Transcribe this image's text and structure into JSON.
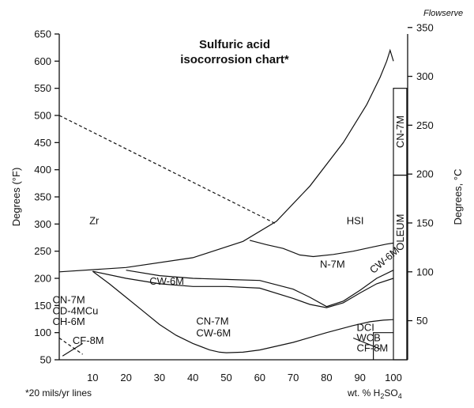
{
  "chart_data": {
    "type": "line",
    "credit": "Flowserve",
    "title_lines": [
      "Sulfuric acid",
      "isocorrosion chart*"
    ],
    "footnote": "*20 mils/yr lines",
    "xlabel_prefix": "wt. % H",
    "xlabel_sub1": "2",
    "xlabel_mid": "SO",
    "xlabel_sub2": "4",
    "ylabel_left": "Degrees (°F)",
    "ylabel_right": "Degrees, °C",
    "xlim": [
      0,
      100
    ],
    "ylim_f": [
      50,
      650
    ],
    "ylim_c": [
      10,
      350
    ],
    "x_ticks": [
      10,
      20,
      30,
      40,
      50,
      60,
      70,
      80,
      90,
      100
    ],
    "y_ticks_f": [
      50,
      100,
      150,
      200,
      250,
      300,
      350,
      400,
      450,
      500,
      550,
      600,
      650
    ],
    "y_ticks_c": [
      50,
      100,
      150,
      200,
      250,
      300,
      350
    ],
    "curves": [
      {
        "id": "boiling",
        "style": "solid",
        "points": [
          [
            0,
            212
          ],
          [
            20,
            220
          ],
          [
            40,
            238
          ],
          [
            55,
            268
          ],
          [
            65,
            305
          ],
          [
            75,
            370
          ],
          [
            85,
            450
          ],
          [
            92,
            520
          ],
          [
            96,
            570
          ],
          [
            98,
            600
          ],
          [
            99,
            620
          ],
          [
            100,
            600
          ]
        ]
      },
      {
        "id": "n7m-upper",
        "style": "solid",
        "points": [
          [
            57,
            270
          ],
          [
            62,
            262
          ],
          [
            67,
            255
          ],
          [
            72,
            243
          ],
          [
            76,
            240
          ],
          [
            82,
            244
          ],
          [
            88,
            250
          ],
          [
            94,
            258
          ],
          [
            98,
            263
          ],
          [
            100,
            265
          ]
        ]
      },
      {
        "id": "n7m-lower",
        "style": "solid",
        "points": [
          [
            20,
            215
          ],
          [
            30,
            205
          ],
          [
            40,
            200
          ],
          [
            50,
            198
          ],
          [
            60,
            196
          ],
          [
            70,
            180
          ],
          [
            75,
            165
          ],
          [
            80,
            148
          ],
          [
            85,
            158
          ],
          [
            90,
            178
          ],
          [
            95,
            200
          ],
          [
            100,
            215
          ]
        ]
      },
      {
        "id": "cw6m-lower",
        "style": "solid",
        "points": [
          [
            10,
            213
          ],
          [
            20,
            200
          ],
          [
            30,
            190
          ],
          [
            40,
            185
          ],
          [
            50,
            185
          ],
          [
            60,
            182
          ],
          [
            70,
            163
          ],
          [
            75,
            152
          ],
          [
            80,
            146
          ],
          [
            85,
            155
          ],
          [
            90,
            173
          ],
          [
            95,
            190
          ],
          [
            100,
            200
          ]
        ]
      },
      {
        "id": "cn7m-bottom",
        "style": "solid",
        "points": [
          [
            10,
            213
          ],
          [
            15,
            190
          ],
          [
            20,
            165
          ],
          [
            25,
            140
          ],
          [
            30,
            115
          ],
          [
            35,
            95
          ],
          [
            40,
            80
          ],
          [
            45,
            68
          ],
          [
            48,
            64
          ],
          [
            50,
            63
          ],
          [
            55,
            64
          ],
          [
            60,
            68
          ],
          [
            70,
            82
          ],
          [
            80,
            100
          ],
          [
            88,
            113
          ],
          [
            93,
            120
          ],
          [
            97,
            123
          ],
          [
            100,
            124
          ]
        ]
      },
      {
        "id": "zr-hsi-boundary",
        "style": "dashed",
        "points": [
          [
            0,
            500
          ],
          [
            65,
            300
          ]
        ]
      },
      {
        "id": "cf8m-dashed",
        "style": "dashed",
        "points": [
          [
            0,
            90
          ],
          [
            7,
            60
          ]
        ]
      },
      {
        "id": "cf8m-solid",
        "style": "solid",
        "points": [
          [
            1,
            57
          ],
          [
            7,
            80
          ]
        ]
      },
      {
        "id": "dci-box",
        "style": "solid",
        "points": [
          [
            94,
            50
          ],
          [
            94,
            100
          ],
          [
            100,
            100
          ]
        ]
      },
      {
        "id": "dci-leader",
        "style": "solid",
        "points": [
          [
            88,
            90
          ],
          [
            96,
            70
          ]
        ]
      }
    ],
    "bars": [
      {
        "label": "CN-7M",
        "x_range": [
          100,
          104
        ],
        "y_range_f": [
          390,
          550
        ]
      },
      {
        "label": "OLEUM",
        "x_range": [
          100,
          104
        ],
        "y_range_f": [
          50,
          390
        ]
      }
    ],
    "region_labels": [
      {
        "text": "Zr",
        "x": 9,
        "y": 300
      },
      {
        "text": "HSI",
        "x": 86,
        "y": 300
      },
      {
        "text": "N-7M",
        "x": 78,
        "y": 220
      },
      {
        "text": "CW-6M",
        "x": 27,
        "y": 188
      },
      {
        "text": "CN-7M",
        "x": 41,
        "y": 115
      },
      {
        "text": "CW-6M",
        "x": 41,
        "y": 93
      },
      {
        "text": "CN-7M",
        "x": -2,
        "y": 154
      },
      {
        "text": "CD-4MCu",
        "x": -2,
        "y": 134
      },
      {
        "text": "CH-6M",
        "x": -2,
        "y": 114
      },
      {
        "text": "CF-8M",
        "x": 4,
        "y": 79
      },
      {
        "text": "DCI",
        "x": 89,
        "y": 103
      },
      {
        "text": "WCB",
        "x": 89,
        "y": 84
      },
      {
        "text": "CF-8M",
        "x": 89,
        "y": 65
      },
      {
        "text": "CW-6M",
        "x": 94,
        "y": 208,
        "rotate": -40
      }
    ]
  }
}
